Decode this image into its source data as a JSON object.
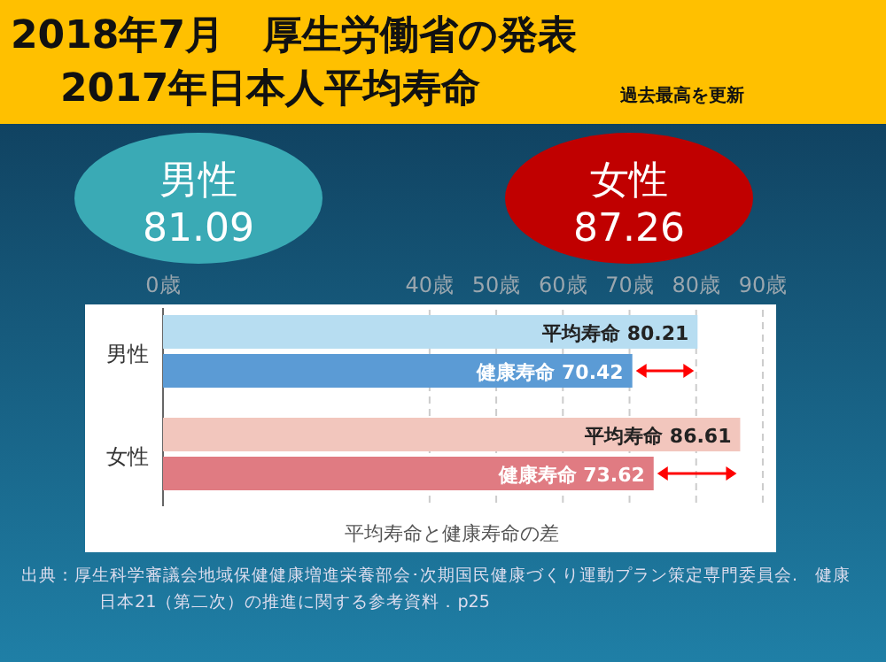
{
  "chart_data": {
    "type": "bar",
    "orientation": "horizontal",
    "title": "2018年7月　厚生労働省の発表\n2017年日本人平均寿命",
    "subtitle": "過去最高を更新",
    "xlabel": "平均寿命と健康寿命の差",
    "categories": [
      "男性",
      "女性"
    ],
    "series": [
      {
        "colors": [
          "#b7ddf1",
          "#f2c6bd"
        ],
        "values": [
          80.21,
          86.61
        ],
        "value_labels": [
          "平均寿命 80.21",
          "平均寿命 86.61"
        ]
      },
      {
        "colors": [
          "#5b9bd5",
          "#e07b82"
        ],
        "values": [
          70.42,
          73.62
        ],
        "value_labels": [
          "健康寿命 70.42",
          "健康寿命 73.62"
        ]
      }
    ],
    "xlim": [
      0,
      92
    ],
    "xticks": [
      {
        "value": 0,
        "label": "0歳"
      },
      {
        "value": 40,
        "label": "40歳"
      },
      {
        "value": 50,
        "label": "50歳"
      },
      {
        "value": 60,
        "label": "60歳"
      },
      {
        "value": 70,
        "label": "70歳"
      },
      {
        "value": 80,
        "label": "80歳"
      },
      {
        "value": 90,
        "label": "90歳"
      }
    ],
    "grid": "x",
    "annotations": [
      "男性",
      "81.09",
      "女性",
      "87.26",
      "出典：厚生科学審議会地域保健健康増進栄養部会･次期国民健康づくり運動プラン策定専門委員会.　健康日本21（第二次）の推進に関する参考資料．p25"
    ]
  }
}
